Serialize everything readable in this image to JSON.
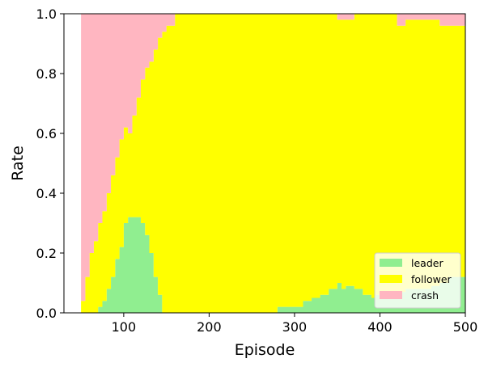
{
  "chart_data": {
    "type": "area",
    "stacked": true,
    "xlabel": "Episode",
    "ylabel": "Rate",
    "xlim": [
      30,
      500
    ],
    "ylim": [
      0,
      1
    ],
    "xticks": [
      100,
      200,
      300,
      400,
      500
    ],
    "yticks": [
      0.0,
      0.2,
      0.4,
      0.6,
      0.8,
      1.0
    ],
    "xtick_labels": [
      "100",
      "200",
      "300",
      "400",
      "500"
    ],
    "ytick_labels": [
      "0.0",
      "0.2",
      "0.4",
      "0.6",
      "0.8",
      "1.0"
    ],
    "legend_position": "lower right",
    "grid": false,
    "x": [
      50,
      55,
      60,
      65,
      70,
      75,
      80,
      85,
      90,
      95,
      100,
      105,
      110,
      115,
      120,
      125,
      130,
      135,
      140,
      145,
      150,
      160,
      180,
      200,
      250,
      275,
      280,
      300,
      310,
      320,
      330,
      340,
      345,
      350,
      355,
      360,
      370,
      380,
      390,
      395,
      400,
      410,
      420,
      430,
      440,
      450,
      460,
      470,
      480,
      490,
      500
    ],
    "series": [
      {
        "name": "leader",
        "color": "#90ee90",
        "values": [
          0,
          0,
          0,
          0,
          0.02,
          0.04,
          0.08,
          0.12,
          0.18,
          0.22,
          0.3,
          0.32,
          0.32,
          0.32,
          0.3,
          0.26,
          0.2,
          0.12,
          0.06,
          0,
          0,
          0,
          0,
          0,
          0,
          0,
          0.02,
          0.02,
          0.04,
          0.05,
          0.06,
          0.08,
          0.08,
          0.1,
          0.08,
          0.09,
          0.08,
          0.06,
          0.05,
          0.06,
          0.06,
          0.06,
          0.07,
          0.08,
          0.08,
          0.08,
          0.09,
          0.1,
          0.12,
          0.12,
          0.12
        ]
      },
      {
        "name": "follower",
        "color": "#ffff00",
        "values": [
          0.04,
          0.12,
          0.2,
          0.24,
          0.28,
          0.3,
          0.32,
          0.34,
          0.34,
          0.36,
          0.32,
          0.28,
          0.34,
          0.4,
          0.48,
          0.56,
          0.64,
          0.76,
          0.86,
          0.94,
          0.96,
          1,
          1,
          1,
          1,
          1,
          0.98,
          0.98,
          0.96,
          0.95,
          0.94,
          0.92,
          0.92,
          0.88,
          0.9,
          0.89,
          0.92,
          0.94,
          0.95,
          0.94,
          0.94,
          0.94,
          0.89,
          0.9,
          0.9,
          0.9,
          0.89,
          0.86,
          0.84,
          0.84,
          0.84
        ]
      },
      {
        "name": "crash",
        "color": "#ffb6c1",
        "values": [
          0.96,
          0.88,
          0.8,
          0.76,
          0.7,
          0.66,
          0.6,
          0.54,
          0.48,
          0.42,
          0.38,
          0.4,
          0.34,
          0.28,
          0.22,
          0.18,
          0.16,
          0.12,
          0.08,
          0.06,
          0.04,
          0,
          0,
          0,
          0,
          0,
          0,
          0,
          0,
          0,
          0,
          0,
          0,
          0.02,
          0.02,
          0.02,
          0,
          0,
          0,
          0,
          0,
          0,
          0.04,
          0.02,
          0.02,
          0.02,
          0.02,
          0.04,
          0.04,
          0.04,
          0.04
        ]
      }
    ]
  }
}
